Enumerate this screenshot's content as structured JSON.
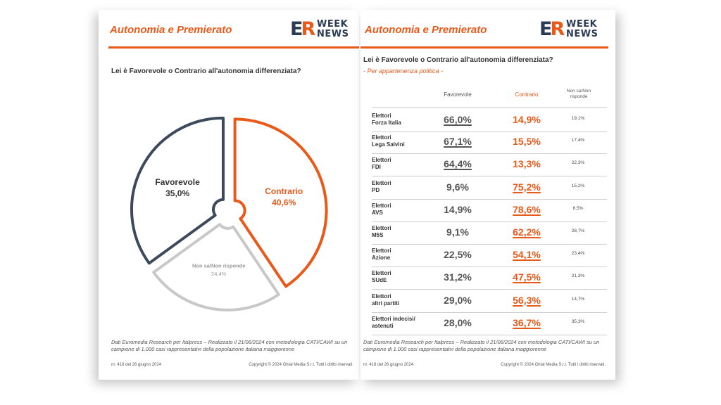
{
  "left_page": {
    "section_title": "Autonomia e Premierato",
    "logo": {
      "mark_e": "E",
      "mark_r": "R",
      "line1": "WEEK",
      "line2": "NEWS"
    },
    "question": "Lei è Favorevole o Contrario all'autonomia differenziata?",
    "footnote": "Dati Euromedia Research per Italpress – Realizzato il 21/06/2024 con metodologia CATI/CAWI su un campione di 1.000 casi rappresentativi della popolazione italiana maggiorenne",
    "issue": "nr. 418 del 26 giugno 2024",
    "copyright": "Copyright © 2024 Ghial Media S.r.l. Tutti i diritti riservati."
  },
  "right_page": {
    "section_title": "Autonomia e Premierato",
    "logo": {
      "mark_e": "E",
      "mark_r": "R",
      "line1": "WEEK",
      "line2": "NEWS"
    },
    "question": "Lei è Favorevole o Contrario all'autonomia differenziata?",
    "subtitle": "- Per appartenenza politica -",
    "footnote": "Dati Euromedia Research per Italpress – Realizzato il 21/06/2024 con metodologia CATI/CAWI su un campione di 1.000 casi rappresentativi della popolazione italiana maggiorenne",
    "issue": "nr. 418 del 26 giugno 2024",
    "copyright": "Copyright © 2024 Ghial Media S.r.l. Tutti i diritti riservati."
  },
  "colors": {
    "accent": "#e8591a",
    "navy": "#3d4a5c",
    "grey": "#c8c8c8"
  },
  "chart_data": [
    {
      "type": "pie",
      "title": "Lei è Favorevole o Contrario all'autonomia differenziata?",
      "slices": [
        {
          "label": "Contrario",
          "value": 40.6,
          "display": "40,6%",
          "color": "#e8591a"
        },
        {
          "label": "Non sa/Non risponde",
          "value": 24.4,
          "display": "24,4%",
          "color": "#c8c8c8"
        },
        {
          "label": "Favorevole",
          "value": 35.0,
          "display": "35,0%",
          "color": "#3d4a5c"
        }
      ]
    },
    {
      "type": "table",
      "title": "Lei è Favorevole o Contrario all'autonomia differenziata?",
      "subtitle": "- Per appartenenza politica -",
      "columns": {
        "favorevole": "Favorevole",
        "contrario": "Contrario",
        "non_sa_1": "Non sa/Non",
        "non_sa_2": "risponde"
      },
      "rows": [
        {
          "party_1": "Elettori",
          "party_2": "Forza Italia",
          "favorevole": "66,0%",
          "contrario": "14,9%",
          "non_sa": "19,1%",
          "majority": "favorevole"
        },
        {
          "party_1": "Elettori",
          "party_2": "Lega Salvini",
          "favorevole": "67,1%",
          "contrario": "15,5%",
          "non_sa": "17,4%",
          "majority": "favorevole"
        },
        {
          "party_1": "Elettori",
          "party_2": "FDI",
          "favorevole": "64,4%",
          "contrario": "13,3%",
          "non_sa": "22,3%",
          "majority": "favorevole"
        },
        {
          "party_1": "Elettori",
          "party_2": "PD",
          "favorevole": "9,6%",
          "contrario": "75,2%",
          "non_sa": "15,2%",
          "majority": "contrario"
        },
        {
          "party_1": "Elettori",
          "party_2": "AVS",
          "favorevole": "14,9%",
          "contrario": "78,6%",
          "non_sa": "6,5%",
          "majority": "contrario"
        },
        {
          "party_1": "Elettori",
          "party_2": "M5S",
          "favorevole": "9,1%",
          "contrario": "62,2%",
          "non_sa": "28,7%",
          "majority": "contrario"
        },
        {
          "party_1": "Elettori",
          "party_2": "Azione",
          "favorevole": "22,5%",
          "contrario": "54,1%",
          "non_sa": "23,4%",
          "majority": "contrario"
        },
        {
          "party_1": "Elettori",
          "party_2": "SUdE",
          "favorevole": "31,2%",
          "contrario": "47,5%",
          "non_sa": "21,3%",
          "majority": "contrario"
        },
        {
          "party_1": "Elettori",
          "party_2": "altri partiti",
          "favorevole": "29,0%",
          "contrario": "56,3%",
          "non_sa": "14,7%",
          "majority": "contrario"
        },
        {
          "party_1": "Elettori indecisi/",
          "party_2": "astenuti",
          "favorevole": "28,0%",
          "contrario": "36,7%",
          "non_sa": "35,3%",
          "majority": "contrario"
        }
      ]
    }
  ]
}
